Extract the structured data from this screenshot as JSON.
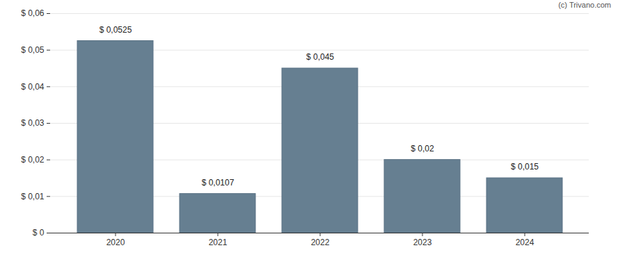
{
  "chart_data": {
    "type": "bar",
    "caption": "(c) Trivano.com",
    "categories": [
      "2020",
      "2021",
      "2022",
      "2023",
      "2024"
    ],
    "values": [
      0.0525,
      0.0107,
      0.045,
      0.02,
      0.015
    ],
    "value_labels": [
      "$ 0,0525",
      "$ 0,0107",
      "$ 0,045",
      "$ 0,02",
      "$ 0,015"
    ],
    "data_labels": true,
    "color": "#667f91",
    "ylim": [
      0,
      0.06
    ],
    "yticks": [
      {
        "value": 0,
        "label": "$ 0"
      },
      {
        "value": 0.01,
        "label": "$ 0,01"
      },
      {
        "value": 0.02,
        "label": "$ 0,02"
      },
      {
        "value": 0.03,
        "label": "$ 0,03"
      },
      {
        "value": 0.04,
        "label": "$ 0,04"
      },
      {
        "value": 0.05,
        "label": "$ 0,05"
      },
      {
        "value": 0.06,
        "label": "$ 0,06"
      }
    ],
    "grid": true
  }
}
